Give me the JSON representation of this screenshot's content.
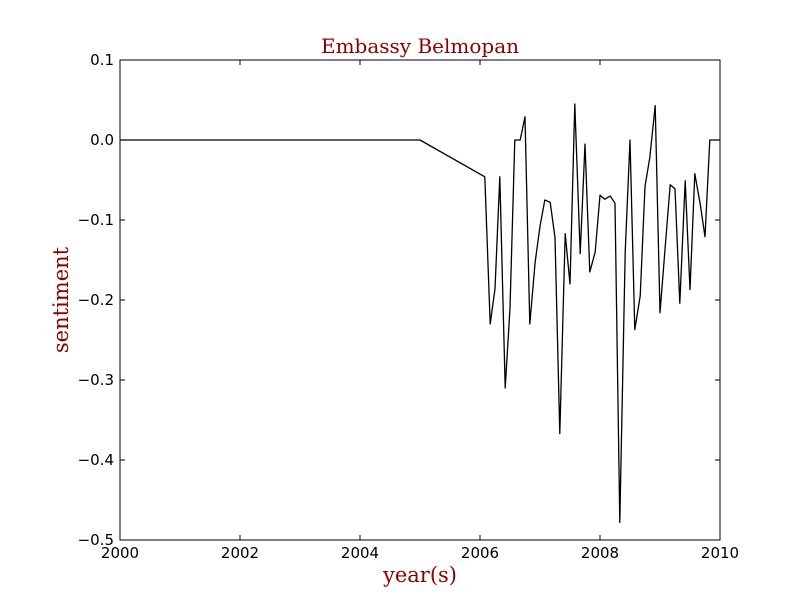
{
  "chart_data": {
    "type": "line",
    "title": "Embassy Belmopan",
    "xlabel": "year(s)",
    "ylabel": "sentiment",
    "label_color": "#8b0000",
    "line_color": "#000000",
    "xlim": [
      2000,
      2010
    ],
    "ylim": [
      -0.5,
      0.1
    ],
    "x_ticks": [
      2000,
      2002,
      2004,
      2006,
      2008,
      2010
    ],
    "x_tick_labels": [
      "2000",
      "2002",
      "2004",
      "2006",
      "2008",
      "2010"
    ],
    "y_ticks": [
      0.1,
      0.0,
      -0.1,
      -0.2,
      -0.3,
      -0.4,
      -0.5
    ],
    "y_tick_labels": [
      "0.1",
      "0.0",
      "−0.1",
      "−0.2",
      "−0.3",
      "−0.4",
      "−0.5"
    ],
    "grid": false,
    "series": [
      {
        "name": "sentiment",
        "x": [
          2000.0,
          2005.0,
          2006.08,
          2006.17,
          2006.25,
          2006.33,
          2006.42,
          2006.5,
          2006.58,
          2006.67,
          2006.75,
          2006.83,
          2006.92,
          2007.0,
          2007.08,
          2007.17,
          2007.25,
          2007.33,
          2007.42,
          2007.5,
          2007.58,
          2007.67,
          2007.75,
          2007.83,
          2007.92,
          2008.0,
          2008.08,
          2008.17,
          2008.25,
          2008.33,
          2008.42,
          2008.5,
          2008.58,
          2008.67,
          2008.75,
          2008.83,
          2008.92,
          2009.0,
          2009.08,
          2009.17,
          2009.25,
          2009.33,
          2009.42,
          2009.5,
          2009.58,
          2009.67,
          2009.75,
          2009.83,
          2009.92,
          2010.0
        ],
        "y": [
          0.0,
          0.0,
          -0.046,
          -0.23,
          -0.186,
          -0.046,
          -0.31,
          -0.21,
          0.0,
          0.0,
          0.029,
          -0.23,
          -0.152,
          -0.108,
          -0.075,
          -0.078,
          -0.122,
          -0.367,
          -0.117,
          -0.18,
          0.045,
          -0.142,
          -0.005,
          -0.165,
          -0.14,
          -0.069,
          -0.074,
          -0.07,
          -0.079,
          -0.478,
          -0.14,
          0.0,
          -0.237,
          -0.195,
          -0.058,
          -0.022,
          0.043,
          -0.216,
          -0.14,
          -0.056,
          -0.061,
          -0.204,
          -0.051,
          -0.187,
          -0.042,
          -0.08,
          -0.121,
          0.0,
          0.0,
          0.0
        ]
      }
    ]
  }
}
